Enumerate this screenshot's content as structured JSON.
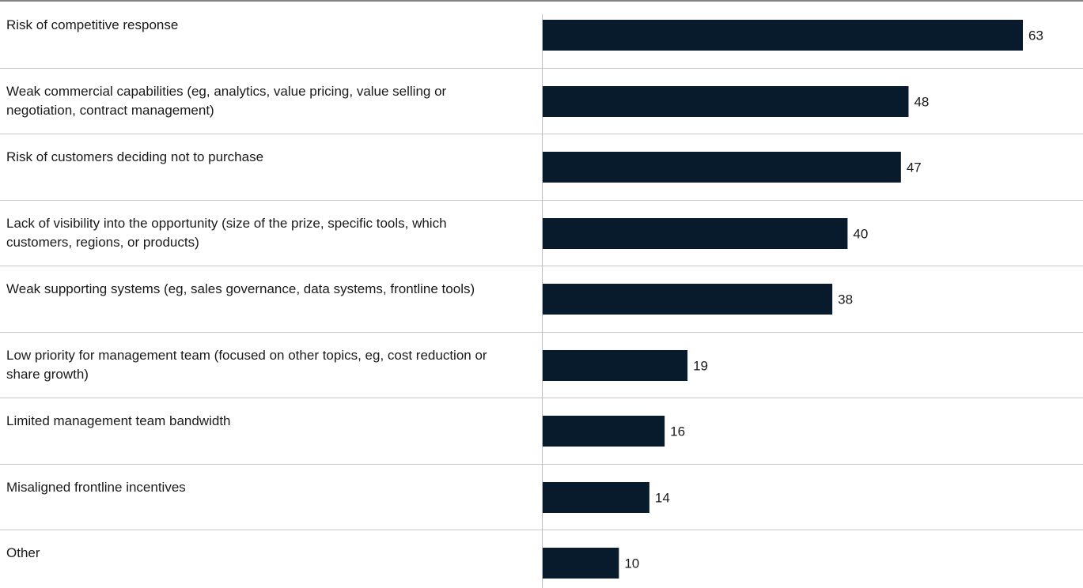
{
  "chart_data": {
    "type": "bar",
    "orientation": "horizontal",
    "categories": [
      "Risk of competitive response",
      "Weak commercial capabilities (eg, analytics, value pricing, value selling or negotiation, contract management)",
      "Risk of customers deciding not to purchase",
      "Lack of visibility into the opportunity (size of the prize, specific tools, which customers, regions, or products)",
      "Weak supporting systems (eg, sales governance, data systems, frontline tools)",
      "Low priority for management team (focused on other topics, eg, cost reduction or share growth)",
      "Limited management team bandwidth",
      "Misaligned frontline incentives",
      "Other"
    ],
    "values": [
      63,
      48,
      47,
      40,
      38,
      19,
      16,
      14,
      10
    ],
    "data_labels": [
      "63",
      "48",
      "47",
      "40",
      "38",
      "19",
      "16",
      "14",
      "10"
    ],
    "xlim": [
      0,
      63
    ],
    "grid": false,
    "legend": "none",
    "colors": {
      "bar": "#071b2c",
      "separator": "#c8c8c8",
      "top_rule": "#5a5a5a",
      "axis": "#bdbdbd",
      "text": "#1a1a1a"
    }
  }
}
